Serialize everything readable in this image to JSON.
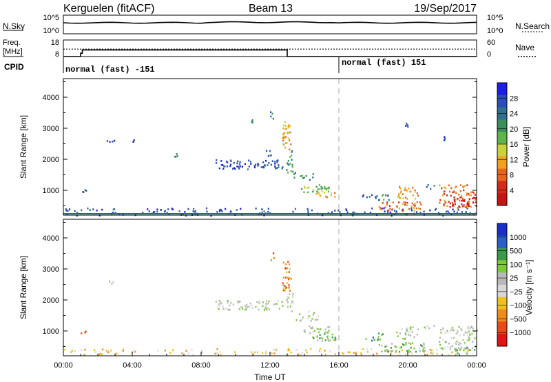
{
  "header": {
    "station": "Kerguelen (fitACF)",
    "beam": "Beam 13",
    "date": "19/Sep/2017"
  },
  "sky_panel": {
    "left_label": "N.Sky",
    "right_label": "N.Search",
    "left_ticks": [
      "10^5",
      "10^0"
    ],
    "right_ticks": [
      "10^5",
      "10^0"
    ]
  },
  "freq_panel": {
    "left_label_line1": "Freq.",
    "left_label_line2": "[MHz]",
    "right_label": "Nave",
    "left_ticks": [
      "18",
      "8"
    ],
    "right_ticks": [
      "60",
      "0"
    ],
    "freq_series": [
      {
        "t": 0.0,
        "mhz": 8
      },
      {
        "t": 1.0,
        "mhz": 8
      },
      {
        "t": 1.0,
        "mhz": 10
      },
      {
        "t": 1.1,
        "mhz": 10
      },
      {
        "t": 1.1,
        "mhz": 12
      },
      {
        "t": 13.0,
        "mhz": 12
      },
      {
        "t": 13.0,
        "mhz": 8
      },
      {
        "t": 24.0,
        "mhz": 8
      }
    ],
    "nave_level_mhz": 12.5
  },
  "cpid": {
    "label": "CPID",
    "segments": [
      {
        "start": 0,
        "end": 16,
        "text": "normal (fast) -151"
      },
      {
        "start": 16,
        "end": 24,
        "text": "normal (fast) 151"
      }
    ]
  },
  "chart_data": [
    {
      "type": "heatmap",
      "name": "power",
      "ylabel": "Slant Range [km]",
      "ylim": [
        200,
        4600
      ],
      "xlim": [
        0,
        24
      ],
      "yticks": [
        "4000",
        "3000",
        "2000",
        "1000"
      ],
      "yticks_values": [
        4000,
        3000,
        2000,
        1000
      ],
      "colorbar": {
        "label": "Power [dB]",
        "ticks": [
          "28",
          "24",
          "20",
          "16",
          "12",
          "8",
          "4"
        ],
        "colors": [
          "#1e1ee6",
          "#2a4db8",
          "#2f6f8f",
          "#3b8f5c",
          "#5fb54a",
          "#c9d23a",
          "#f0a21e",
          "#e8641c",
          "#d42a1a",
          "#c51414"
        ]
      },
      "blobs": [
        {
          "t0": 0.0,
          "t1": 24.0,
          "r0": 200,
          "r1": 450,
          "c": 1,
          "d": 0.35
        },
        {
          "t0": 1.0,
          "t1": 1.3,
          "r0": 950,
          "r1": 1100,
          "c": 1,
          "d": 0.6
        },
        {
          "t0": 2.5,
          "t1": 3.0,
          "r0": 2550,
          "r1": 2650,
          "c": 1,
          "d": 0.5
        },
        {
          "t0": 3.9,
          "t1": 4.1,
          "r0": 2580,
          "r1": 2650,
          "c": 1,
          "d": 0.5
        },
        {
          "t0": 6.4,
          "t1": 6.6,
          "r0": 2100,
          "r1": 2200,
          "c": 2,
          "d": 0.5
        },
        {
          "t0": 8.8,
          "t1": 12.7,
          "r0": 1700,
          "r1": 2000,
          "c": 1,
          "d": 0.7
        },
        {
          "t0": 10.8,
          "t1": 11.0,
          "r0": 3200,
          "r1": 3300,
          "c": 3,
          "d": 0.4
        },
        {
          "t0": 11.7,
          "t1": 12.2,
          "r0": 2100,
          "r1": 2300,
          "c": 2,
          "d": 0.6
        },
        {
          "t0": 12.0,
          "t1": 12.2,
          "r0": 3300,
          "r1": 3550,
          "c": 2,
          "d": 0.5
        },
        {
          "t0": 12.7,
          "t1": 13.2,
          "r0": 2300,
          "r1": 3300,
          "c": 6,
          "d": 0.8
        },
        {
          "t0": 12.9,
          "t1": 13.3,
          "r0": 1600,
          "r1": 2300,
          "c": 3,
          "d": 0.7
        },
        {
          "t0": 13.3,
          "t1": 14.5,
          "r0": 1350,
          "r1": 1600,
          "c": 3,
          "d": 0.5
        },
        {
          "t0": 13.8,
          "t1": 15.5,
          "r0": 950,
          "r1": 1200,
          "c": 4,
          "d": 0.8
        },
        {
          "t0": 14.5,
          "t1": 15.8,
          "r0": 800,
          "r1": 1000,
          "c": 6,
          "d": 0.6
        },
        {
          "t0": 17.3,
          "t1": 18.3,
          "r0": 750,
          "r1": 950,
          "c": 1,
          "d": 0.4
        },
        {
          "t0": 18.0,
          "t1": 19.0,
          "r0": 700,
          "r1": 950,
          "c": 3,
          "d": 0.6
        },
        {
          "t0": 18.3,
          "t1": 20.8,
          "r0": 350,
          "r1": 650,
          "c": 7,
          "d": 0.7
        },
        {
          "t0": 19.3,
          "t1": 20.6,
          "r0": 750,
          "r1": 1150,
          "c": 6,
          "d": 0.7
        },
        {
          "t0": 20.8,
          "t1": 21.5,
          "r0": 1050,
          "r1": 1200,
          "c": 2,
          "d": 0.5
        },
        {
          "t0": 19.8,
          "t1": 20.0,
          "r0": 3050,
          "r1": 3300,
          "c": 1,
          "d": 0.5
        },
        {
          "t0": 21.6,
          "t1": 22.3,
          "r0": 2600,
          "r1": 2750,
          "c": 1,
          "d": 0.5
        },
        {
          "t0": 21.8,
          "t1": 23.9,
          "r0": 450,
          "r1": 1200,
          "c": 7,
          "d": 0.6
        },
        {
          "t0": 22.5,
          "t1": 24.0,
          "r0": 500,
          "r1": 800,
          "c": 9,
          "d": 0.7
        }
      ]
    },
    {
      "type": "heatmap",
      "name": "velocity",
      "ylabel": "Slant Range [km]",
      "ylim": [
        200,
        4600
      ],
      "xlim": [
        0,
        24
      ],
      "yticks": [
        "4000",
        "3000",
        "2000",
        "1000"
      ],
      "yticks_values": [
        4000,
        3000,
        2000,
        1000
      ],
      "xticks": [
        "00:00",
        "04:00",
        "08:00",
        "12:00",
        "16:00",
        "20:00",
        "00:00"
      ],
      "xticks_values": [
        0,
        4,
        8,
        12,
        16,
        20,
        24
      ],
      "xlabel": "Time UT",
      "colorbar": {
        "label": "Velocity [m s⁻¹]",
        "ticks": [
          "1000",
          "500",
          "100",
          "25",
          "−25",
          "−100",
          "−500",
          "−1000"
        ],
        "colors": [
          "#1a2ec8",
          "#2a5ec8",
          "#3a9a4a",
          "#7ccc3a",
          "#b8b8b8",
          "#d8d8d8",
          "#f0c020",
          "#f08a1a",
          "#e84a1a",
          "#e01414"
        ]
      },
      "blobs": [
        {
          "t0": 0.0,
          "t1": 24.0,
          "r0": 250,
          "r1": 450,
          "c": 6,
          "d": 0.3
        },
        {
          "t0": 1.0,
          "t1": 1.3,
          "r0": 950,
          "r1": 1100,
          "c": 7,
          "d": 0.6
        },
        {
          "t0": 2.5,
          "t1": 3.0,
          "r0": 2550,
          "r1": 2650,
          "c": 4,
          "d": 0.5
        },
        {
          "t0": 8.8,
          "t1": 12.7,
          "r0": 1700,
          "r1": 2000,
          "c": 4,
          "d": 0.7
        },
        {
          "t0": 12.0,
          "t1": 12.2,
          "r0": 3300,
          "r1": 3550,
          "c": 7,
          "d": 0.5
        },
        {
          "t0": 12.7,
          "t1": 13.2,
          "r0": 2300,
          "r1": 3300,
          "c": 7,
          "d": 0.8
        },
        {
          "t0": 12.9,
          "t1": 13.3,
          "r0": 1600,
          "r1": 2300,
          "c": 4,
          "d": 0.7
        },
        {
          "t0": 13.3,
          "t1": 14.8,
          "r0": 1350,
          "r1": 1650,
          "c": 4,
          "d": 0.5
        },
        {
          "t0": 13.8,
          "t1": 15.5,
          "r0": 950,
          "r1": 1200,
          "c": 4,
          "d": 0.7
        },
        {
          "t0": 14.3,
          "t1": 15.8,
          "r0": 700,
          "r1": 950,
          "c": 3,
          "d": 0.8
        },
        {
          "t0": 17.5,
          "t1": 18.6,
          "r0": 700,
          "r1": 950,
          "c": 2,
          "d": 0.5
        },
        {
          "t0": 18.3,
          "t1": 21.0,
          "r0": 350,
          "r1": 650,
          "c": 3,
          "d": 0.7
        },
        {
          "t0": 19.3,
          "t1": 20.6,
          "r0": 750,
          "r1": 1150,
          "c": 4,
          "d": 0.6
        },
        {
          "t0": 20.8,
          "t1": 21.6,
          "r0": 1050,
          "r1": 1200,
          "c": 4,
          "d": 0.5
        },
        {
          "t0": 21.8,
          "t1": 24.0,
          "r0": 400,
          "r1": 1200,
          "c": 4,
          "d": 0.6
        },
        {
          "t0": 22.5,
          "t1": 24.0,
          "r0": 250,
          "r1": 500,
          "c": 3,
          "d": 0.6
        }
      ]
    }
  ]
}
